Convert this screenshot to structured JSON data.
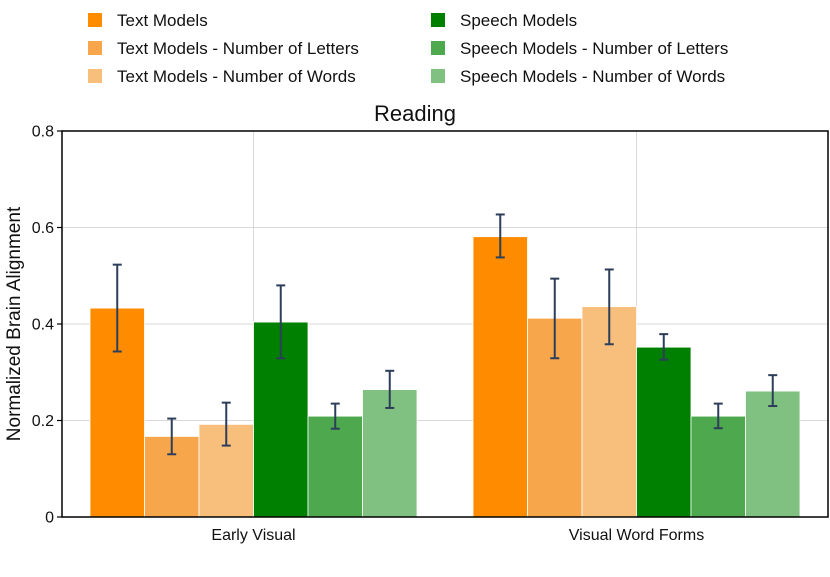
{
  "chart_data": {
    "type": "bar",
    "title": "Reading",
    "xlabel": "",
    "ylabel": "Normalized Brain Alignment",
    "ylim": [
      0,
      0.8
    ],
    "yticks": [
      0,
      0.2,
      0.4,
      0.6,
      0.8
    ],
    "ytick_labels": [
      "0",
      "0.2",
      "0.4",
      "0.6",
      "0.8"
    ],
    "grid": true,
    "legend_position": "top",
    "categories": [
      "Early Visual",
      "Visual Word Forms"
    ],
    "series": [
      {
        "name": "Text Models",
        "color": "#ff8c00",
        "values": [
          0.433,
          0.581
        ],
        "err_low": [
          0.343,
          0.538
        ],
        "err_high": [
          0.523,
          0.627
        ]
      },
      {
        "name": "Text Models - Number of Letters",
        "color": "#f7a64c",
        "values": [
          0.167,
          0.412
        ],
        "err_low": [
          0.13,
          0.329
        ],
        "err_high": [
          0.204,
          0.494
        ]
      },
      {
        "name": "Text Models - Number of Words",
        "color": "#f7bf7b",
        "values": [
          0.192,
          0.436
        ],
        "err_low": [
          0.148,
          0.358
        ],
        "err_high": [
          0.237,
          0.513
        ]
      },
      {
        "name": "Speech Models",
        "color": "#008000",
        "values": [
          0.404,
          0.352
        ],
        "err_low": [
          0.329,
          0.326
        ],
        "err_high": [
          0.48,
          0.379
        ]
      },
      {
        "name": "Speech Models - Number of Letters",
        "color": "#4ea84e",
        "values": [
          0.209,
          0.209
        ],
        "err_low": [
          0.183,
          0.184
        ],
        "err_high": [
          0.235,
          0.235
        ]
      },
      {
        "name": "Speech Models - Number of Words",
        "color": "#80c080",
        "values": [
          0.264,
          0.261
        ],
        "err_low": [
          0.226,
          0.23
        ],
        "err_high": [
          0.303,
          0.294
        ]
      }
    ],
    "error_bar_color": "#2d3e5a"
  }
}
